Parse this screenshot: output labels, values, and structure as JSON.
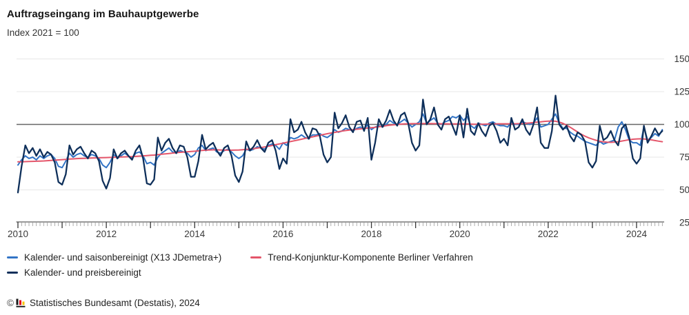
{
  "header": {
    "title": "Auftragseingang im Bauhauptgewerbe",
    "subtitle": "Index 2021 = 100"
  },
  "menu": {
    "icon": "hamburger-icon"
  },
  "footer": {
    "copyright": "©",
    "text": "Statistisches Bundesamt (Destatis), 2024"
  },
  "chart_data": {
    "type": "line",
    "title": "Auftragseingang im Bauhauptgewerbe",
    "subtitle": "Index 2021 = 100",
    "x_start": "2010-01",
    "x_end": "2024-08",
    "months": 176,
    "x_tick_labels": [
      "2010",
      "2012",
      "2014",
      "2016",
      "2018",
      "2020",
      "2022",
      "2024"
    ],
    "y_ticks": [
      150,
      125,
      100,
      75,
      50,
      25
    ],
    "ylim": [
      25,
      160
    ],
    "reference_line": 100,
    "grid": "horizontal",
    "legend_position": "bottom-left",
    "colors": {
      "seasonal": "#3274c6",
      "trend": "#e4556a",
      "price_adjusted": "#0e2f5a",
      "grid": "#e7e7e7",
      "reference": "#666666",
      "axis": "#333333"
    },
    "series": [
      {
        "name": "Kalender- und saisonbereinigt (X13 JDemetra+)",
        "color": "#3274c6",
        "values": [
          69,
          73,
          76,
          74,
          75,
          73,
          76,
          74,
          76,
          77,
          74,
          68,
          67,
          72,
          78,
          75,
          77,
          78,
          76,
          75,
          77,
          76,
          74,
          69,
          67,
          71,
          77,
          74,
          76,
          78,
          76,
          74,
          78,
          79,
          76,
          70,
          71,
          69,
          75,
          78,
          80,
          82,
          79,
          78,
          80,
          79,
          78,
          75,
          77,
          82,
          84,
          80,
          81,
          82,
          79,
          78,
          80,
          81,
          79,
          76,
          74,
          76,
          81,
          80,
          81,
          83,
          82,
          81,
          84,
          85,
          84,
          81,
          86,
          84,
          90,
          89,
          90,
          92,
          90,
          89,
          92,
          92,
          93,
          91,
          90,
          92,
          96,
          94,
          95,
          97,
          96,
          95,
          97,
          98,
          96,
          100,
          96,
          98,
          99,
          98,
          100,
          103,
          101,
          100,
          102,
          104,
          101,
          98,
          100,
          102,
          108,
          101,
          103,
          105,
          101,
          100,
          102,
          103,
          106,
          105,
          107,
          103,
          106,
          99,
          97,
          101,
          100,
          99,
          101,
          102,
          100,
          99,
          99,
          98,
          102,
          100,
          100,
          102,
          101,
          100,
          101,
          105,
          98,
          99,
          100,
          104,
          108,
          101,
          97,
          97,
          94,
          92,
          91,
          89,
          87,
          86,
          85,
          84,
          87,
          85,
          86,
          87,
          88,
          98,
          102,
          96,
          88,
          86,
          86,
          84,
          98,
          88,
          90,
          93,
          91,
          96
        ]
      },
      {
        "name": "Trend-Konjunktur-Komponente Berliner Verfahren",
        "color": "#e4556a",
        "values": [
          71.5,
          71.5,
          71.6,
          71.7,
          71.8,
          71.9,
          72,
          72.1,
          72.3,
          72.5,
          72.7,
          72.9,
          73.1,
          73.3,
          73.5,
          73.7,
          73.9,
          74,
          74.1,
          74.2,
          74.3,
          74.4,
          74.5,
          74.6,
          74.7,
          74.8,
          74.9,
          75,
          75.1,
          75.2,
          75.3,
          75.4,
          75.6,
          75.8,
          76,
          76.2,
          76.4,
          76.6,
          76.9,
          77.2,
          77.5,
          77.8,
          78.1,
          78.4,
          78.7,
          78.9,
          79.1,
          79.3,
          79.5,
          79.8,
          80.1,
          80.3,
          80.5,
          80.6,
          80.6,
          80.5,
          80.4,
          80.3,
          80.3,
          80.4,
          80.5,
          80.7,
          80.9,
          81.2,
          81.5,
          81.9,
          82.3,
          82.8,
          83.3,
          83.9,
          84.5,
          85.1,
          85.7,
          86.3,
          86.9,
          87.5,
          88.1,
          88.7,
          89.3,
          89.9,
          90.5,
          91.1,
          91.7,
          92.3,
          92.9,
          93.4,
          93.9,
          94.4,
          94.9,
          95.3,
          95.7,
          96,
          96.3,
          96.6,
          96.9,
          97.2,
          97.5,
          97.8,
          98.2,
          98.6,
          99,
          99.4,
          99.7,
          100,
          100.2,
          100.4,
          100.5,
          100.6,
          100.6,
          100.7,
          100.7,
          100.7,
          100.7,
          100.6,
          100.6,
          100.5,
          100.5,
          100.4,
          100.4,
          100.4,
          100.4,
          100.4,
          100.3,
          100.2,
          100.1,
          100.1,
          100.1,
          100.2,
          100.3,
          100.4,
          100.5,
          100.5,
          100.5,
          100.5,
          100.5,
          100.5,
          100.6,
          100.7,
          100.9,
          101.1,
          101.4,
          101.7,
          102,
          102.3,
          102.5,
          102.6,
          102.4,
          101.8,
          100.8,
          99.4,
          97.8,
          96,
          94.2,
          92.5,
          91,
          89.8,
          88.8,
          87.9,
          87.2,
          86.7,
          86.4,
          86.3,
          86.5,
          86.8,
          87.3,
          87.8,
          88.3,
          88.7,
          88.9,
          89,
          88.9,
          88.6,
          88.2,
          87.7,
          87.2,
          86.8
        ]
      },
      {
        "name": "Kalender- und preisbereinigt",
        "color": "#0e2f5a",
        "values": [
          48,
          68,
          84,
          78,
          82,
          76,
          81,
          75,
          79,
          77,
          71,
          56,
          54,
          62,
          84,
          77,
          81,
          83,
          78,
          74,
          80,
          78,
          72,
          57,
          51,
          59,
          81,
          74,
          78,
          80,
          76,
          73,
          80,
          84,
          74,
          55,
          54,
          58,
          90,
          80,
          86,
          89,
          82,
          78,
          84,
          83,
          75,
          60,
          60,
          72,
          92,
          81,
          84,
          86,
          80,
          76,
          82,
          84,
          76,
          61,
          56,
          64,
          87,
          80,
          83,
          88,
          82,
          79,
          86,
          88,
          80,
          66,
          74,
          70,
          104,
          94,
          96,
          102,
          94,
          89,
          97,
          96,
          91,
          77,
          71,
          75,
          109,
          97,
          101,
          107,
          98,
          94,
          102,
          103,
          95,
          105,
          73,
          86,
          104,
          98,
          103,
          111,
          103,
          99,
          107,
          109,
          101,
          86,
          80,
          84,
          119,
          100,
          104,
          113,
          100,
          96,
          104,
          106,
          99,
          92,
          107,
          90,
          112,
          95,
          92,
          101,
          95,
          91,
          99,
          101,
          95,
          86,
          89,
          84,
          105,
          96,
          98,
          104,
          96,
          92,
          100,
          113,
          86,
          82,
          82,
          95,
          122,
          100,
          96,
          99,
          91,
          87,
          94,
          92,
          87,
          71,
          67,
          72,
          99,
          88,
          90,
          95,
          88,
          84,
          97,
          100,
          90,
          74,
          70,
          74,
          99,
          86,
          91,
          97,
          92,
          95
        ]
      }
    ]
  }
}
